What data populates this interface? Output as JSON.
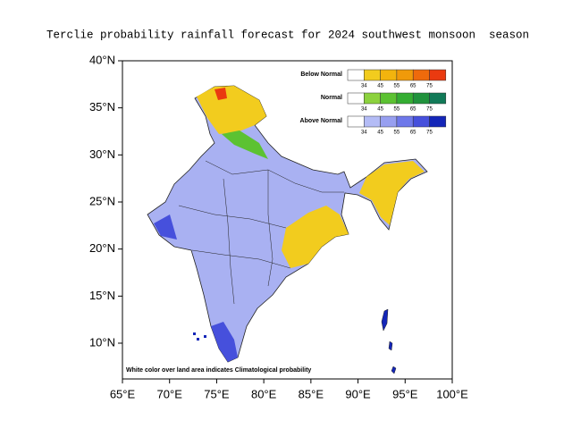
{
  "title": "Terclie probability rainfall forecast for 2024 southwest monsoon  season",
  "map": {
    "xlim": [
      65,
      100
    ],
    "ylim": [
      6.2,
      40
    ],
    "xticks": [
      {
        "value": 65,
        "label": "65°E"
      },
      {
        "value": 70,
        "label": "70°E"
      },
      {
        "value": 75,
        "label": "75°E"
      },
      {
        "value": 80,
        "label": "80°E"
      },
      {
        "value": 85,
        "label": "85°E"
      },
      {
        "value": 90,
        "label": "90°E"
      },
      {
        "value": 95,
        "label": "95°E"
      },
      {
        "value": 100,
        "label": "100°E"
      }
    ],
    "yticks": [
      {
        "value": 10,
        "label": "10°N"
      },
      {
        "value": 15,
        "label": "15°N"
      },
      {
        "value": 20,
        "label": "20°N"
      },
      {
        "value": 25,
        "label": "25°N"
      },
      {
        "value": 30,
        "label": "30°N"
      },
      {
        "value": 35,
        "label": "35°N"
      },
      {
        "value": 40,
        "label": "40°N"
      }
    ]
  },
  "legend": {
    "levels": [
      34,
      45,
      55,
      65,
      75
    ],
    "rows": [
      {
        "name": "Below Normal",
        "colors": [
          "#ffffff",
          "#f2cc1e",
          "#f2b40e",
          "#f09a0a",
          "#ee6a0c",
          "#ea3a10"
        ]
      },
      {
        "name": "Normal",
        "colors": [
          "#ffffff",
          "#8cd23e",
          "#5cc232",
          "#34ad32",
          "#20923c",
          "#117a58"
        ]
      },
      {
        "name": "Above Normal",
        "colors": [
          "#ffffff",
          "#b4bcf6",
          "#979ff0",
          "#6e78ea",
          "#4650dc",
          "#1426b8"
        ]
      }
    ]
  },
  "note": "White color over land area indicates Climatological probability"
}
